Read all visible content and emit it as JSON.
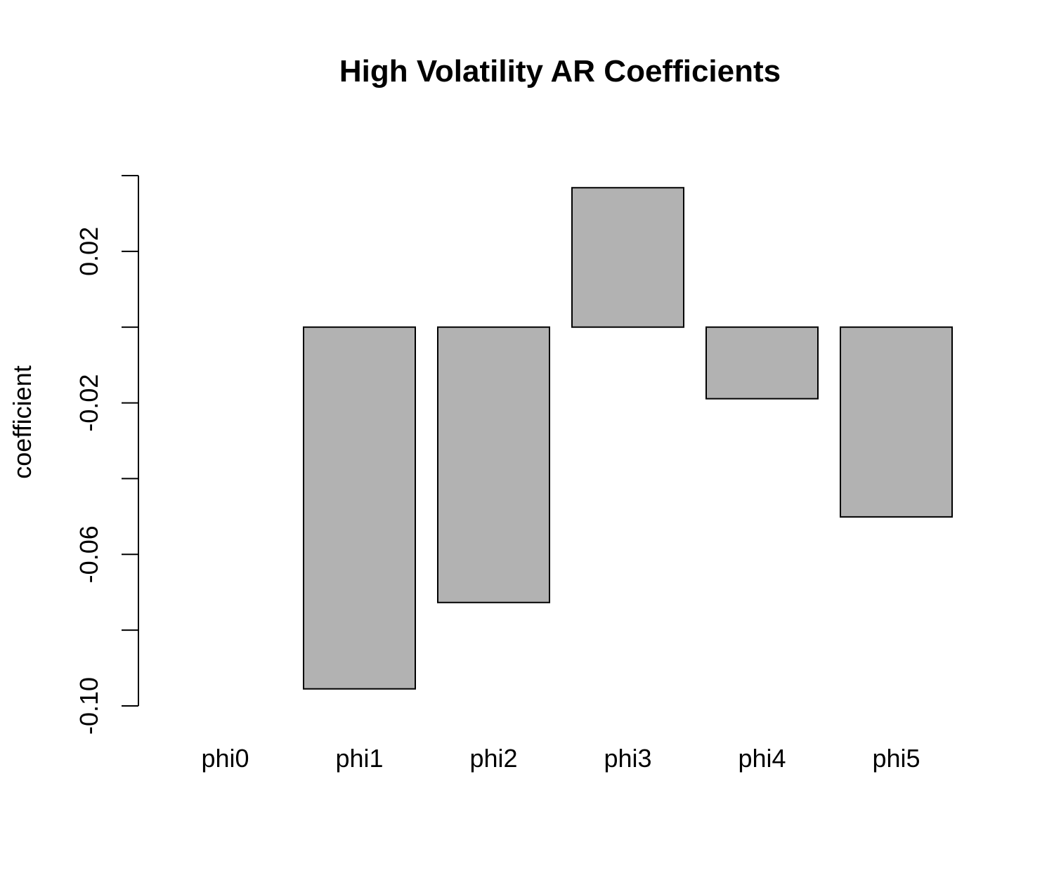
{
  "chart_data": {
    "type": "bar",
    "title": "High Volatility AR Coefficients",
    "xlabel": "",
    "ylabel": "coefficient",
    "categories": [
      "phi0",
      "phi1",
      "phi2",
      "phi3",
      "phi4",
      "phi5"
    ],
    "values": [
      0.0,
      -0.0955,
      -0.0727,
      0.0368,
      -0.0189,
      -0.0501
    ],
    "ylim": [
      -0.1,
      0.04
    ],
    "yticks": [
      -0.1,
      -0.08,
      -0.06,
      -0.04,
      -0.02,
      0.0,
      0.02,
      0.04
    ],
    "ytick_labels": [
      "-0.10",
      "",
      "-0.06",
      "",
      "-0.02",
      "",
      "0.02",
      ""
    ],
    "grid": false,
    "colors": {
      "bar_fill": "#b2b2b2",
      "bar_stroke": "#000000",
      "background": "#ffffff"
    }
  }
}
